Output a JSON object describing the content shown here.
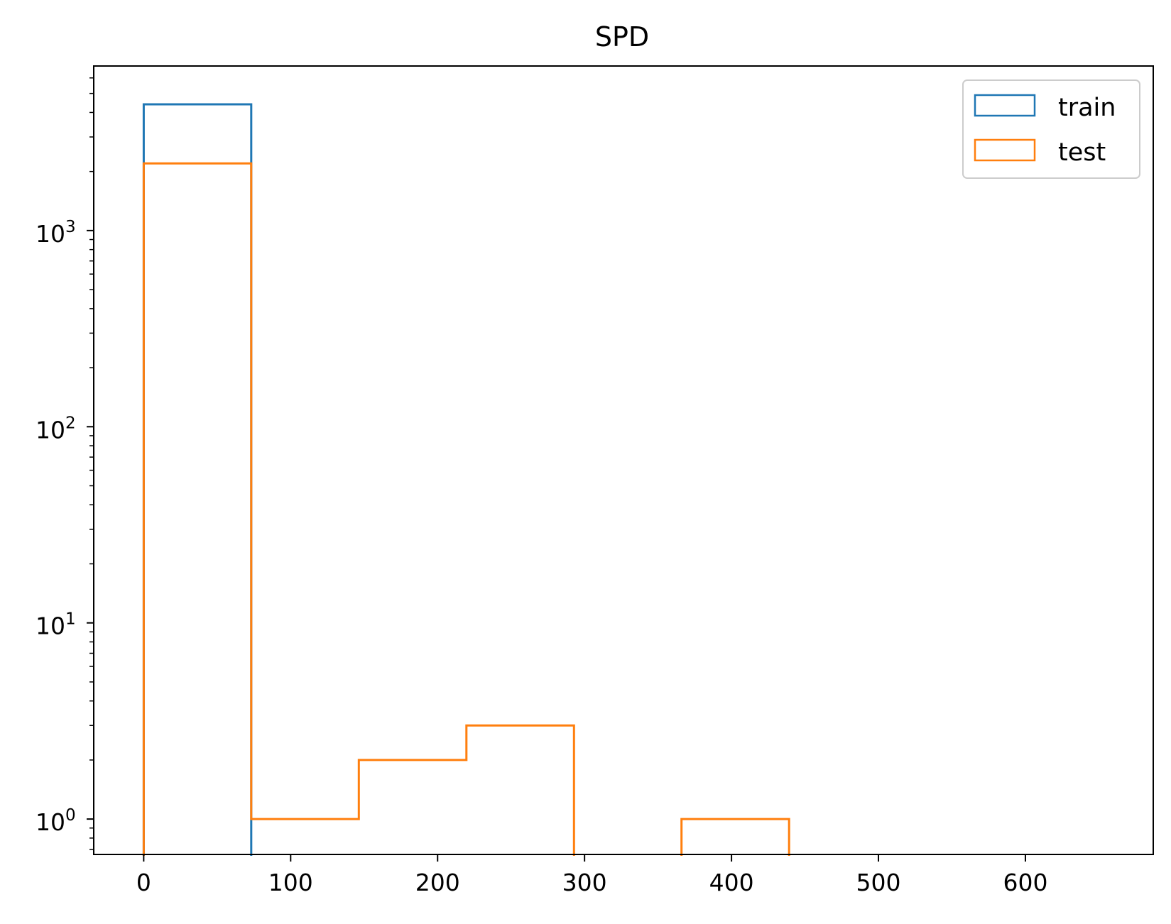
{
  "chart_data": {
    "type": "histogram",
    "title": "SPD",
    "xlabel": "",
    "ylabel": "",
    "x_scale": "linear",
    "y_scale": "log",
    "xlim": [
      -34,
      687
    ],
    "ylim": [
      0.66,
      6900
    ],
    "x_ticks": [
      {
        "value": 0,
        "label": "0"
      },
      {
        "value": 100,
        "label": "100"
      },
      {
        "value": 200,
        "label": "200"
      },
      {
        "value": 300,
        "label": "300"
      },
      {
        "value": 400,
        "label": "400"
      },
      {
        "value": 500,
        "label": "500"
      },
      {
        "value": 600,
        "label": "600"
      }
    ],
    "y_ticks": [
      {
        "value": 1,
        "base": "10",
        "exp": "0"
      },
      {
        "value": 10,
        "base": "10",
        "exp": "1"
      },
      {
        "value": 100,
        "base": "10",
        "exp": "2"
      },
      {
        "value": 1000,
        "base": "10",
        "exp": "3"
      }
    ],
    "grid": false,
    "legend": {
      "position": "top-right"
    },
    "series": [
      {
        "name": "train",
        "color": "#1f77b4",
        "bin_edges": [
          0,
          73.2,
          146.4,
          219.6,
          292.8,
          366,
          439.2,
          512.4,
          585.6,
          658.8
        ],
        "counts": [
          4400,
          0,
          0,
          0,
          0,
          0,
          0,
          0,
          0
        ]
      },
      {
        "name": "test",
        "color": "#ff7f0e",
        "bin_edges": [
          0,
          73.2,
          146.4,
          219.6,
          292.8,
          366,
          439.2,
          512.4,
          585.6,
          658.8
        ],
        "counts": [
          2200,
          1,
          2,
          3,
          0,
          1,
          0,
          0,
          0
        ]
      }
    ]
  }
}
